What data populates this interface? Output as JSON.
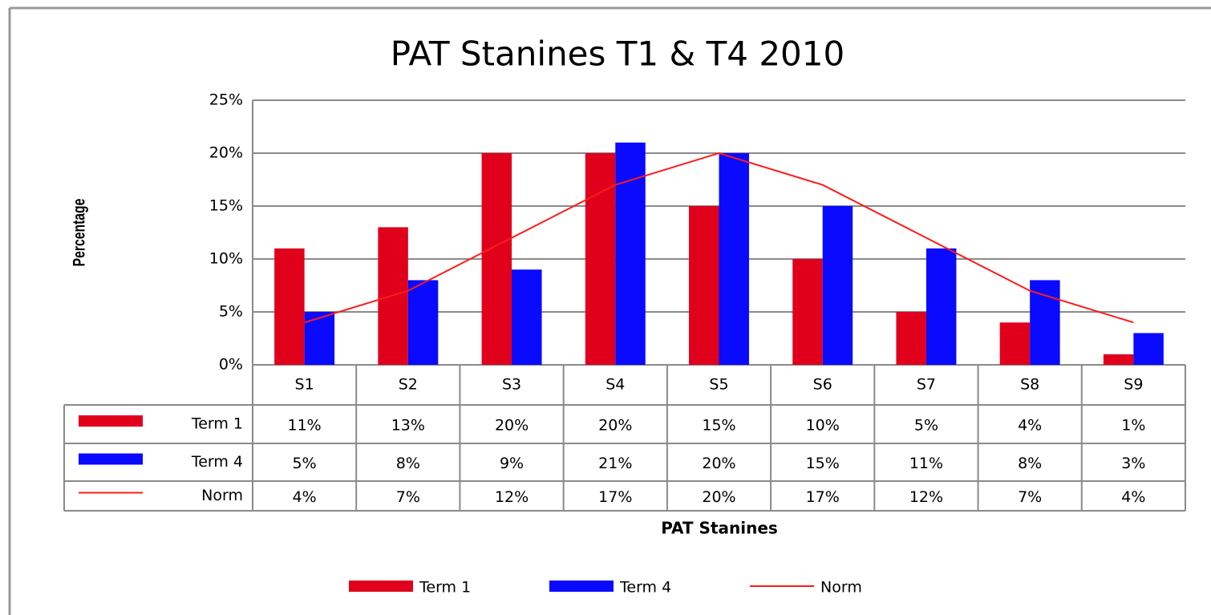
{
  "chart_data": {
    "type": "bar",
    "title": "PAT Stanines T1 & T4 2010",
    "x_label": "PAT Stanines",
    "y_label": "Percentage",
    "categories": [
      "S1",
      "S2",
      "S3",
      "S4",
      "S5",
      "S6",
      "S7",
      "S8",
      "S9"
    ],
    "series": [
      {
        "name": "Term 1",
        "type": "bar",
        "color": "#e0001b",
        "values": [
          11,
          13,
          20,
          20,
          15,
          10,
          5,
          4,
          1
        ],
        "value_labels": [
          "11%",
          "13%",
          "20%",
          "20%",
          "15%",
          "10%",
          "5%",
          "4%",
          "1%"
        ]
      },
      {
        "name": "Term 4",
        "type": "bar",
        "color": "#0a0aff",
        "values": [
          5,
          8,
          9,
          21,
          20,
          15,
          11,
          8,
          3
        ],
        "value_labels": [
          "5%",
          "8%",
          "9%",
          "21%",
          "20%",
          "15%",
          "11%",
          "8%",
          "3%"
        ]
      },
      {
        "name": "Norm",
        "type": "line",
        "color": "#ff1a1a",
        "values": [
          4,
          7,
          12,
          17,
          20,
          17,
          12,
          7,
          4
        ],
        "value_labels": [
          "4%",
          "7%",
          "12%",
          "17%",
          "20%",
          "17%",
          "12%",
          "7%",
          "4%"
        ]
      }
    ],
    "ylim": [
      0,
      25
    ],
    "yticks": [
      {
        "value": 0,
        "label": "0%"
      },
      {
        "value": 5,
        "label": "5%"
      },
      {
        "value": 10,
        "label": "10%"
      },
      {
        "value": 15,
        "label": "15%"
      },
      {
        "value": 20,
        "label": "20%"
      },
      {
        "value": 25,
        "label": "25%"
      }
    ],
    "grid": true
  }
}
